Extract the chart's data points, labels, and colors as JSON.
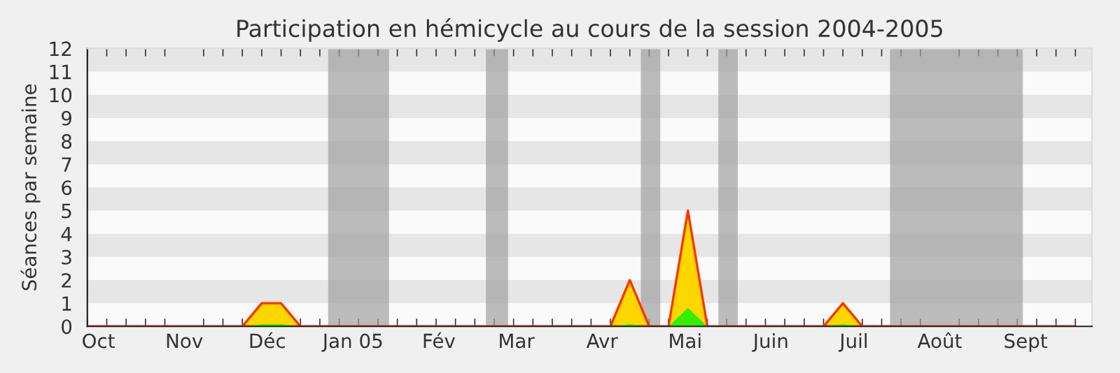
{
  "chart_data": {
    "type": "area",
    "title": "Participation en hémicycle au cours de la session 2004-2005",
    "ylabel": "Séances par semaine",
    "x": [
      "2004-09-27",
      "2004-10-04",
      "2004-10-11",
      "2004-10-18",
      "2004-10-25",
      "2004-11-01",
      "2004-11-08",
      "2004-11-15",
      "2004-11-22",
      "2004-11-29",
      "2004-12-06",
      "2004-12-13",
      "2004-12-20",
      "2004-12-27",
      "2005-01-03",
      "2005-01-10",
      "2005-01-17",
      "2005-01-24",
      "2005-01-31",
      "2005-02-07",
      "2005-02-14",
      "2005-02-21",
      "2005-02-28",
      "2005-03-07",
      "2005-03-14",
      "2005-03-21",
      "2005-03-28",
      "2005-04-04",
      "2005-04-11",
      "2005-04-18",
      "2005-04-25",
      "2005-05-02",
      "2005-05-09",
      "2005-05-16",
      "2005-05-23",
      "2005-05-30",
      "2005-06-06",
      "2005-06-13",
      "2005-06-20",
      "2005-06-27",
      "2005-07-04",
      "2005-07-11",
      "2005-07-18",
      "2005-07-25",
      "2005-08-01",
      "2005-08-08",
      "2005-08-15",
      "2005-08-22",
      "2005-08-29",
      "2005-09-05",
      "2005-09-12",
      "2005-09-19"
    ],
    "series": [
      {
        "color": "#ffd700",
        "values": [
          0,
          0,
          0,
          0,
          0,
          0,
          0,
          0,
          0,
          1,
          1,
          0,
          0,
          0,
          0,
          0,
          0,
          0,
          0,
          0,
          0,
          0,
          0,
          0,
          0,
          0,
          0,
          0,
          2,
          0,
          0,
          5,
          0,
          0,
          0,
          0,
          0,
          0,
          0,
          1,
          0,
          0,
          0,
          0,
          0,
          0,
          0,
          0,
          0,
          0,
          0,
          0
        ]
      },
      {
        "color": "#33ee00",
        "values": [
          0,
          0,
          0,
          0,
          0,
          0,
          0,
          0,
          0,
          0.1,
          0.1,
          0,
          0,
          0,
          0,
          0,
          0,
          0,
          0,
          0,
          0,
          0,
          0,
          0,
          0,
          0,
          0,
          0,
          0.1,
          0,
          0,
          0.8,
          0,
          0,
          0,
          0,
          0,
          0,
          0,
          0.1,
          0,
          0,
          0,
          0,
          0,
          0,
          0,
          0,
          0,
          0,
          0,
          0
        ]
      }
    ],
    "xlim": [
      "2004-09-27",
      "2005-09-25"
    ],
    "xticks": [
      {
        "value": "2004-10-01",
        "label": "Oct"
      },
      {
        "value": "2004-11-01",
        "label": "Nov"
      },
      {
        "value": "2004-12-01",
        "label": "Déc"
      },
      {
        "value": "2005-01-01",
        "label": "Jan 05"
      },
      {
        "value": "2005-02-01",
        "label": "Fév"
      },
      {
        "value": "2005-03-01",
        "label": "Mar"
      },
      {
        "value": "2005-04-01",
        "label": "Avr"
      },
      {
        "value": "2005-05-01",
        "label": "Mai"
      },
      {
        "value": "2005-06-01",
        "label": "Juin"
      },
      {
        "value": "2005-07-01",
        "label": "Juil"
      },
      {
        "value": "2005-08-01",
        "label": "Août"
      },
      {
        "value": "2005-09-01",
        "label": "Sept"
      }
    ],
    "ylim": [
      0,
      12
    ],
    "yticks": [
      0,
      1,
      2,
      3,
      4,
      5,
      6,
      7,
      8,
      9,
      10,
      11,
      12
    ],
    "bands": [
      {
        "axis": "y",
        "from": 1,
        "to": 2,
        "color": "#e6e6e6"
      },
      {
        "axis": "y",
        "from": 3,
        "to": 4,
        "color": "#e6e6e6"
      },
      {
        "axis": "y",
        "from": 5,
        "to": 6,
        "color": "#e6e6e6"
      },
      {
        "axis": "y",
        "from": 7,
        "to": 8,
        "color": "#e6e6e6"
      },
      {
        "axis": "y",
        "from": 9,
        "to": 10,
        "color": "#e6e6e6"
      },
      {
        "axis": "y",
        "from": 11,
        "to": 12,
        "color": "#e6e6e6"
      },
      {
        "axis": "x",
        "from": "2004-12-23",
        "to": "2005-01-14",
        "color": "#a0a0a0"
      },
      {
        "axis": "x",
        "from": "2005-02-18",
        "to": "2005-02-26",
        "color": "#a0a0a0"
      },
      {
        "axis": "x",
        "from": "2005-04-15",
        "to": "2005-04-22",
        "color": "#a0a0a0"
      },
      {
        "axis": "x",
        "from": "2005-05-13",
        "to": "2005-05-20",
        "color": "#a0a0a0"
      },
      {
        "axis": "x",
        "from": "2005-07-14",
        "to": "2005-08-31",
        "color": "#a0a0a0"
      }
    ],
    "grid": false,
    "legend": false
  }
}
